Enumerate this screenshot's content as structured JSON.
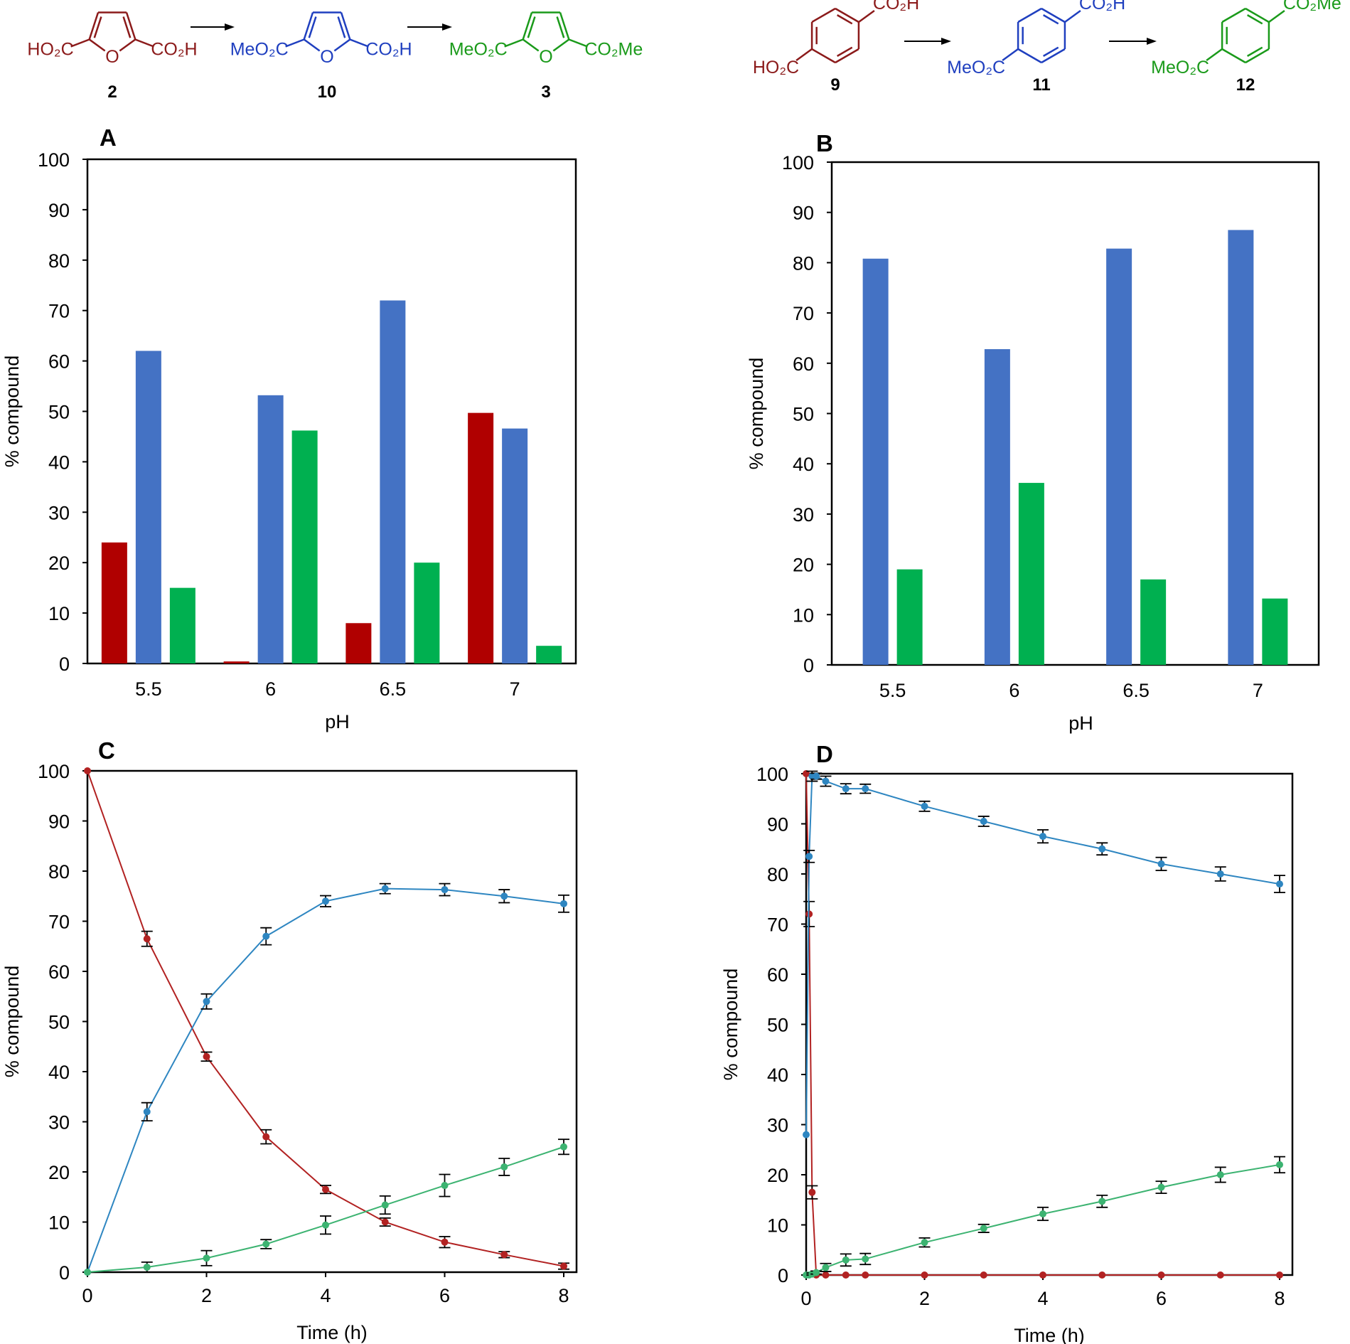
{
  "colors": {
    "red": "#b00000",
    "blue": "#4472c4",
    "green": "#00b050",
    "line_red": "#b22222",
    "line_blue": "#2e86c1",
    "line_green": "#3cb371",
    "scheme_red": "#8b1a1a",
    "scheme_blue": "#1f3fbf",
    "scheme_green": "#1a9a1a"
  },
  "schemes": {
    "left": {
      "compounds": [
        {
          "id": "2",
          "left_group": "HO₂C",
          "right_group": "CO₂H",
          "color": "scheme_red"
        },
        {
          "id": "10",
          "left_group": "MeO₂C",
          "right_group": "CO₂H",
          "color": "scheme_blue"
        },
        {
          "id": "3",
          "left_group": "MeO₂C",
          "right_group": "CO₂Me",
          "color": "scheme_green"
        }
      ],
      "ring_atom": "O"
    },
    "right": {
      "compounds": [
        {
          "id": "9",
          "bottom_group": "HO₂C",
          "top_group": "CO₂H",
          "color": "scheme_red"
        },
        {
          "id": "11",
          "bottom_group": "MeO₂C",
          "top_group": "CO₂H",
          "color": "scheme_blue"
        },
        {
          "id": "12",
          "bottom_group": "MeO₂C",
          "top_group": "CO₂Me",
          "color": "scheme_green"
        }
      ]
    }
  },
  "chart_data": [
    {
      "panel": "A",
      "type": "bar",
      "xlabel": "pH",
      "ylabel": "% compound",
      "ylim": [
        0,
        100
      ],
      "yticks": [
        0,
        10,
        20,
        30,
        40,
        50,
        60,
        70,
        80,
        90,
        100
      ],
      "categories": [
        "5.5",
        "6",
        "6.5",
        "7"
      ],
      "series": [
        {
          "color": "red",
          "values": [
            24,
            0.4,
            8,
            49.7
          ]
        },
        {
          "color": "blue",
          "values": [
            62,
            53.2,
            72,
            46.6
          ]
        },
        {
          "color": "green",
          "values": [
            15,
            46.2,
            20,
            3.5
          ]
        }
      ]
    },
    {
      "panel": "B",
      "type": "bar",
      "xlabel": "pH",
      "ylabel": "% compound",
      "ylim": [
        0,
        100
      ],
      "yticks": [
        0,
        10,
        20,
        30,
        40,
        50,
        60,
        70,
        80,
        90,
        100
      ],
      "categories": [
        "5.5",
        "6",
        "6.5",
        "7"
      ],
      "series": [
        {
          "color": "blue",
          "values": [
            80.8,
            62.8,
            82.8,
            86.5
          ]
        },
        {
          "color": "green",
          "values": [
            19,
            36.2,
            17,
            13.2
          ]
        }
      ]
    },
    {
      "panel": "C",
      "type": "line",
      "xlabel": "Time (h)",
      "ylabel": "% compound",
      "xlim": [
        0,
        8
      ],
      "ylim": [
        0,
        100
      ],
      "xticks": [
        0,
        2,
        4,
        6,
        8
      ],
      "yticks": [
        0,
        10,
        20,
        30,
        40,
        50,
        60,
        70,
        80,
        90,
        100
      ],
      "series": [
        {
          "color": "line_red",
          "x": [
            0,
            1,
            2,
            3,
            4,
            5,
            6,
            7,
            8
          ],
          "y": [
            100,
            66.5,
            43,
            27,
            16.5,
            10,
            6,
            3.5,
            1.2
          ],
          "err": [
            0,
            1.5,
            0.9,
            1.4,
            0.8,
            0.8,
            1.1,
            0.6,
            0.6
          ]
        },
        {
          "color": "line_blue",
          "x": [
            0,
            1,
            2,
            3,
            4,
            5,
            6,
            7,
            8
          ],
          "y": [
            0,
            32,
            54,
            67,
            74,
            76.5,
            76.3,
            75,
            73.5
          ],
          "err": [
            0,
            1.8,
            1.5,
            1.7,
            1.1,
            1.0,
            1.2,
            1.3,
            1.7
          ]
        },
        {
          "color": "line_green",
          "x": [
            0,
            1,
            2,
            3,
            4,
            5,
            6,
            7,
            8
          ],
          "y": [
            0,
            1,
            2.8,
            5.6,
            9.4,
            13.4,
            17.3,
            21,
            25
          ],
          "err": [
            0,
            1.0,
            1.5,
            0.9,
            1.8,
            1.8,
            2.2,
            1.7,
            1.5
          ]
        }
      ]
    },
    {
      "panel": "D",
      "type": "line",
      "xlabel": "Time (h)",
      "ylabel": "% compound",
      "xlim": [
        0,
        8
      ],
      "ylim": [
        0,
        100
      ],
      "xticks": [
        0,
        2,
        4,
        6,
        8
      ],
      "yticks": [
        0,
        10,
        20,
        30,
        40,
        50,
        60,
        70,
        80,
        90,
        100
      ],
      "series": [
        {
          "color": "line_red",
          "x": [
            0,
            0.05,
            0.1,
            0.17,
            0.33,
            0.67,
            1,
            2,
            3,
            4,
            5,
            6,
            7,
            8
          ],
          "y": [
            100,
            72,
            16.5,
            0,
            0,
            0,
            0,
            0,
            0,
            0,
            0,
            0,
            0,
            0
          ],
          "err": [
            0,
            2.5,
            1.3,
            0,
            0,
            0,
            0,
            0,
            0,
            0,
            0,
            0,
            0,
            0
          ]
        },
        {
          "color": "line_blue",
          "x": [
            0,
            0.05,
            0.1,
            0.17,
            0.33,
            0.67,
            1,
            2,
            3,
            4,
            5,
            6,
            7,
            8
          ],
          "y": [
            28,
            83.5,
            99.5,
            99.5,
            98.5,
            97,
            97,
            93.5,
            90.5,
            87.5,
            85,
            82,
            80,
            78
          ],
          "err": [
            0,
            1.2,
            1.0,
            0.6,
            1.0,
            1.0,
            0.9,
            1.0,
            1.0,
            1.3,
            1.2,
            1.3,
            1.4,
            1.7
          ]
        },
        {
          "color": "line_green",
          "x": [
            0,
            0.05,
            0.1,
            0.17,
            0.33,
            0.67,
            1,
            2,
            3,
            4,
            5,
            6,
            7,
            8
          ],
          "y": [
            0,
            0,
            0.2,
            0.5,
            1.5,
            3,
            3.2,
            6.5,
            9.3,
            12.2,
            14.7,
            17.5,
            20,
            22
          ],
          "err": [
            0,
            0,
            0.2,
            0.3,
            0.8,
            1.2,
            1.1,
            0.9,
            0.8,
            1.3,
            1.2,
            1.2,
            1.5,
            1.6
          ]
        }
      ]
    }
  ]
}
